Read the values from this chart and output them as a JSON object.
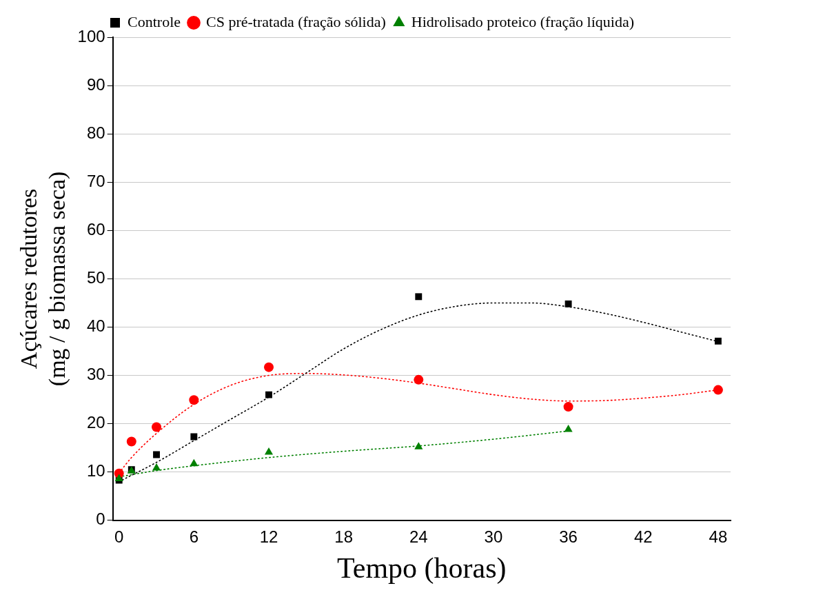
{
  "chart_data": {
    "type": "scatter",
    "xlabel": "Tempo (horas)",
    "ylabel": "Açúcares redutores\n(mg / g biomassa seca)",
    "xlim": [
      -0.5,
      49
    ],
    "xticks": [
      0,
      6,
      12,
      18,
      24,
      30,
      36,
      42,
      48
    ],
    "ylim": [
      0,
      100
    ],
    "yticks": [
      0,
      10,
      20,
      30,
      40,
      50,
      60,
      70,
      80,
      90,
      100
    ],
    "grid": "y",
    "legend": "top",
    "series": [
      {
        "name": "Controle",
        "type": "scatter",
        "marker": "square",
        "color": "#000000",
        "x": [
          0,
          1,
          3,
          6,
          12,
          24,
          36,
          48
        ],
        "values": [
          8.3,
          10.5,
          13.6,
          17.3,
          26.0,
          46.3,
          44.8,
          37.1
        ]
      },
      {
        "name": "CS pré-tratada (fração sólida)",
        "type": "scatter",
        "marker": "circle",
        "color": "#ff0000",
        "x": [
          0,
          1,
          3,
          6,
          12,
          24,
          36,
          48
        ],
        "values": [
          9.7,
          16.3,
          19.3,
          24.9,
          31.7,
          29.1,
          23.5,
          27.0
        ]
      },
      {
        "name": "Hidrolisado proteico (fração líquida)",
        "type": "scatter",
        "marker": "triangle",
        "color": "#008000",
        "x": [
          0,
          1,
          3,
          6,
          12,
          24,
          36
        ],
        "values": [
          8.6,
          10.2,
          10.8,
          11.7,
          14.1,
          15.2,
          18.8
        ]
      },
      {
        "type": "line",
        "line_style": "dotted",
        "color": "#000000",
        "x": [
          0,
          3,
          6,
          9,
          12,
          15,
          18,
          21,
          24,
          27,
          30,
          33,
          36,
          39,
          42,
          45,
          48
        ],
        "values": [
          8.0,
          12.0,
          16.5,
          21.0,
          25.5,
          30.5,
          35.5,
          39.5,
          42.5,
          44.3,
          45.0,
          45.0,
          44.2,
          42.8,
          41.0,
          39.0,
          37.0
        ]
      },
      {
        "type": "line",
        "line_style": "dotted",
        "color": "#ff0000",
        "x": [
          0,
          1,
          3,
          6,
          9,
          12,
          15,
          18,
          21,
          24,
          27,
          30,
          33,
          36,
          39,
          42,
          45,
          48
        ],
        "values": [
          9.8,
          13.0,
          18.0,
          24.0,
          28.0,
          30.0,
          30.4,
          30.1,
          29.4,
          28.4,
          27.2,
          26.0,
          25.1,
          24.7,
          24.8,
          25.3,
          26.0,
          27.0
        ]
      },
      {
        "type": "line",
        "line_style": "dotted",
        "color": "#008000",
        "x": [
          0,
          3,
          6,
          12,
          18,
          24,
          30,
          36
        ],
        "values": [
          9.0,
          10.3,
          11.3,
          13.0,
          14.3,
          15.4,
          16.8,
          18.5
        ]
      }
    ]
  }
}
